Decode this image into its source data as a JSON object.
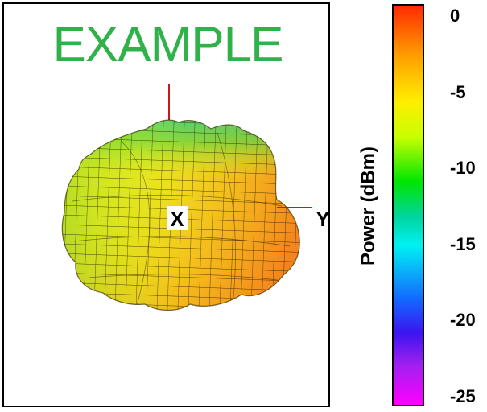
{
  "chart_data": {
    "type": "surface",
    "description_visible": "3D radiation pattern surface",
    "watermark": "EXAMPLE",
    "axis_labels": [
      "X",
      "Y"
    ],
    "colorbar": {
      "label": "Power  (dBm)",
      "ticks": [
        0,
        -5,
        -10,
        -15,
        -20,
        -25
      ],
      "tick_labels": [
        "0",
        "-5",
        "-10",
        "-15",
        "-20",
        "-25"
      ],
      "range": [
        -25,
        0
      ],
      "colormap": [
        "#ff2a00",
        "#ff9a00",
        "#ffee00",
        "#c8ff00",
        "#00e600",
        "#00d4a0",
        "#00f2f2",
        "#1464ff",
        "#3c14f0",
        "#a020f0",
        "#ff00ff"
      ]
    },
    "surface_values_dBm": {
      "top": -10,
      "left": -7,
      "center": -6,
      "right": -2,
      "bottom": -5
    }
  }
}
